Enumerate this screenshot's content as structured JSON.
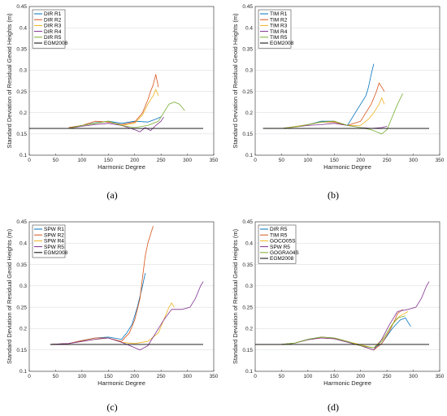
{
  "figure": {
    "background": "#ffffff"
  },
  "chart_data": [
    {
      "type": "line",
      "caption": "(a)",
      "xlabel": "Harmonic Degree",
      "ylabel": "Standard Deviation of Residual Geoid Heights (m)",
      "xlim": [
        0,
        350
      ],
      "ylim": [
        0.1,
        0.45
      ],
      "xticks": [
        0,
        50,
        100,
        150,
        200,
        250,
        300,
        350
      ],
      "yticks": [
        0.1,
        0.15,
        0.2,
        0.25,
        0.3,
        0.35,
        0.4,
        0.45
      ],
      "grid": true,
      "legend_position": "top-left",
      "series": [
        {
          "name": "DIR R1",
          "color": "#0072BD",
          "x": [
            75,
            100,
            125,
            150,
            175,
            200,
            225,
            240,
            250
          ],
          "y": [
            0.165,
            0.17,
            0.176,
            0.18,
            0.175,
            0.18,
            0.178,
            0.185,
            0.19
          ]
        },
        {
          "name": "DIR R2",
          "color": "#D95319",
          "x": [
            75,
            100,
            125,
            150,
            175,
            200,
            215,
            225,
            230,
            235,
            240,
            245
          ],
          "y": [
            0.165,
            0.17,
            0.18,
            0.178,
            0.172,
            0.178,
            0.2,
            0.23,
            0.25,
            0.265,
            0.29,
            0.26
          ]
        },
        {
          "name": "DIR R3",
          "color": "#EDB120",
          "x": [
            75,
            100,
            125,
            150,
            175,
            200,
            215,
            225,
            235,
            240,
            245
          ],
          "y": [
            0.163,
            0.17,
            0.175,
            0.18,
            0.17,
            0.175,
            0.195,
            0.22,
            0.24,
            0.255,
            0.24
          ]
        },
        {
          "name": "DIR R4",
          "color": "#7E2F8E",
          "x": [
            75,
            100,
            125,
            150,
            175,
            200,
            210,
            215,
            220,
            230,
            240,
            250,
            255
          ],
          "y": [
            0.163,
            0.168,
            0.172,
            0.175,
            0.17,
            0.16,
            0.155,
            0.16,
            0.165,
            0.158,
            0.17,
            0.18,
            0.19
          ]
        },
        {
          "name": "DIR R5",
          "color": "#77AC30",
          "x": [
            75,
            100,
            125,
            150,
            175,
            200,
            225,
            245,
            255,
            265,
            275,
            285,
            295
          ],
          "y": [
            0.163,
            0.17,
            0.175,
            0.18,
            0.17,
            0.165,
            0.17,
            0.18,
            0.2,
            0.22,
            0.225,
            0.22,
            0.205
          ]
        },
        {
          "name": "EGM2008",
          "color": "#000000",
          "x": [
            0,
            330
          ],
          "y": [
            0.163,
            0.163
          ]
        }
      ]
    },
    {
      "type": "line",
      "caption": "(b)",
      "xlabel": "Harmonic Degree",
      "ylabel": "Standard Deviation of Residual Geoid Heights (m)",
      "xlim": [
        0,
        350
      ],
      "ylim": [
        0.1,
        0.45
      ],
      "xticks": [
        0,
        50,
        100,
        150,
        200,
        250,
        300,
        350
      ],
      "yticks": [
        0.1,
        0.15,
        0.2,
        0.25,
        0.3,
        0.35,
        0.4,
        0.45
      ],
      "grid": true,
      "legend_position": "top-left",
      "series": [
        {
          "name": "TIM R1",
          "color": "#0072BD",
          "x": [
            15,
            50,
            80,
            100,
            125,
            150,
            175,
            190,
            200,
            210,
            215,
            220,
            225
          ],
          "y": [
            0.163,
            0.163,
            0.168,
            0.172,
            0.18,
            0.18,
            0.17,
            0.2,
            0.22,
            0.24,
            0.26,
            0.29,
            0.315
          ]
        },
        {
          "name": "TIM R2",
          "color": "#D95319",
          "x": [
            15,
            50,
            80,
            100,
            125,
            150,
            175,
            200,
            210,
            220,
            230,
            235,
            240,
            245
          ],
          "y": [
            0.163,
            0.163,
            0.168,
            0.172,
            0.178,
            0.178,
            0.17,
            0.18,
            0.2,
            0.22,
            0.25,
            0.27,
            0.26,
            0.25
          ]
        },
        {
          "name": "TIM R3",
          "color": "#EDB120",
          "x": [
            15,
            50,
            80,
            100,
            125,
            150,
            175,
            200,
            215,
            225,
            235,
            240,
            245
          ],
          "y": [
            0.163,
            0.163,
            0.168,
            0.172,
            0.178,
            0.18,
            0.17,
            0.17,
            0.185,
            0.2,
            0.22,
            0.235,
            0.22
          ]
        },
        {
          "name": "TIM R4",
          "color": "#7E2F8E",
          "x": [
            15,
            50,
            80,
            100,
            125,
            150,
            175,
            200,
            220,
            240,
            250
          ],
          "y": [
            0.163,
            0.163,
            0.167,
            0.17,
            0.172,
            0.175,
            0.17,
            0.165,
            0.163,
            0.165,
            0.168
          ]
        },
        {
          "name": "TIM R5",
          "color": "#77AC30",
          "x": [
            15,
            50,
            80,
            100,
            125,
            150,
            175,
            200,
            220,
            240,
            250,
            260,
            270,
            280
          ],
          "y": [
            0.163,
            0.163,
            0.167,
            0.172,
            0.178,
            0.18,
            0.17,
            0.165,
            0.16,
            0.15,
            0.16,
            0.19,
            0.22,
            0.245
          ]
        },
        {
          "name": "EGM2008",
          "color": "#000000",
          "x": [
            15,
            330
          ],
          "y": [
            0.163,
            0.163
          ]
        }
      ]
    },
    {
      "type": "line",
      "caption": "(c)",
      "xlabel": "Harmonic Degree",
      "ylabel": "Standard Deviation of Residual Geoid Heights (m)",
      "xlim": [
        0,
        350
      ],
      "ylim": [
        0.1,
        0.45
      ],
      "xticks": [
        0,
        50,
        100,
        150,
        200,
        250,
        300,
        350
      ],
      "yticks": [
        0.1,
        0.15,
        0.2,
        0.25,
        0.3,
        0.35,
        0.4,
        0.45
      ],
      "grid": true,
      "legend_position": "top-left",
      "series": [
        {
          "name": "SPW R1",
          "color": "#0072BD",
          "x": [
            40,
            75,
            100,
            125,
            150,
            175,
            185,
            195,
            205,
            215,
            220
          ],
          "y": [
            0.163,
            0.165,
            0.172,
            0.178,
            0.18,
            0.175,
            0.19,
            0.21,
            0.25,
            0.3,
            0.33
          ]
        },
        {
          "name": "SPW R2",
          "color": "#D95319",
          "x": [
            40,
            75,
            100,
            125,
            150,
            175,
            190,
            200,
            210,
            215,
            220,
            225,
            230,
            235
          ],
          "y": [
            0.163,
            0.165,
            0.172,
            0.178,
            0.178,
            0.17,
            0.19,
            0.22,
            0.27,
            0.32,
            0.37,
            0.4,
            0.42,
            0.44
          ]
        },
        {
          "name": "SPW R4",
          "color": "#EDB120",
          "x": [
            40,
            75,
            100,
            125,
            150,
            175,
            200,
            225,
            245,
            255,
            265,
            270,
            275
          ],
          "y": [
            0.163,
            0.165,
            0.17,
            0.175,
            0.178,
            0.168,
            0.165,
            0.17,
            0.19,
            0.22,
            0.25,
            0.26,
            0.25
          ]
        },
        {
          "name": "SPW R5",
          "color": "#7E2F8E",
          "x": [
            40,
            75,
            100,
            125,
            150,
            175,
            195,
            210,
            225,
            240,
            255,
            270,
            290,
            305,
            315,
            325,
            330
          ],
          "y": [
            0.163,
            0.165,
            0.17,
            0.175,
            0.178,
            0.168,
            0.158,
            0.15,
            0.16,
            0.19,
            0.22,
            0.245,
            0.245,
            0.25,
            0.27,
            0.3,
            0.31
          ]
        },
        {
          "name": "EGM2008",
          "color": "#000000",
          "x": [
            40,
            330
          ],
          "y": [
            0.163,
            0.163
          ]
        }
      ]
    },
    {
      "type": "line",
      "caption": "(d)",
      "xlabel": "Harmonic Degree",
      "ylabel": "Standard Deviation of Residual Geoid Heights (m)",
      "xlim": [
        0,
        350
      ],
      "ylim": [
        0.1,
        0.45
      ],
      "xticks": [
        0,
        50,
        100,
        150,
        200,
        250,
        300,
        350
      ],
      "yticks": [
        0.1,
        0.15,
        0.2,
        0.25,
        0.3,
        0.35,
        0.4,
        0.45
      ],
      "grid": true,
      "legend_position": "top-left",
      "series": [
        {
          "name": "DIR R5",
          "color": "#0072BD",
          "x": [
            0,
            50,
            75,
            100,
            125,
            150,
            175,
            200,
            225,
            240,
            260,
            275,
            285,
            295
          ],
          "y": [
            0.163,
            0.163,
            0.166,
            0.175,
            0.18,
            0.178,
            0.17,
            0.16,
            0.155,
            0.165,
            0.2,
            0.22,
            0.225,
            0.205
          ]
        },
        {
          "name": "TIM R5",
          "color": "#D95319",
          "x": [
            0,
            50,
            75,
            100,
            125,
            150,
            175,
            200,
            225,
            240,
            255,
            265,
            270,
            280
          ],
          "y": [
            0.163,
            0.163,
            0.166,
            0.174,
            0.18,
            0.178,
            0.17,
            0.16,
            0.15,
            0.165,
            0.195,
            0.22,
            0.235,
            0.245
          ]
        },
        {
          "name": "GOCO05S",
          "color": "#EDB120",
          "x": [
            0,
            50,
            75,
            100,
            125,
            150,
            175,
            200,
            225,
            245,
            260,
            275,
            290
          ],
          "y": [
            0.163,
            0.163,
            0.166,
            0.174,
            0.178,
            0.176,
            0.17,
            0.162,
            0.155,
            0.18,
            0.21,
            0.23,
            0.24
          ]
        },
        {
          "name": "SPW R5",
          "color": "#7E2F8E",
          "x": [
            0,
            50,
            75,
            100,
            125,
            150,
            175,
            200,
            225,
            240,
            255,
            270,
            290,
            305,
            315,
            325,
            330
          ],
          "y": [
            0.163,
            0.163,
            0.166,
            0.174,
            0.178,
            0.176,
            0.168,
            0.16,
            0.15,
            0.175,
            0.21,
            0.24,
            0.245,
            0.25,
            0.27,
            0.3,
            0.31
          ]
        },
        {
          "name": "GOGRA04S",
          "color": "#77AC30",
          "x": [
            0,
            50,
            75,
            100,
            125,
            150,
            175,
            200,
            225,
            240,
            255,
            270,
            285
          ],
          "y": [
            0.163,
            0.163,
            0.166,
            0.175,
            0.18,
            0.178,
            0.17,
            0.16,
            0.155,
            0.17,
            0.2,
            0.225,
            0.23
          ]
        },
        {
          "name": "EGM2008",
          "color": "#000000",
          "x": [
            0,
            330
          ],
          "y": [
            0.163,
            0.163
          ]
        }
      ]
    }
  ]
}
